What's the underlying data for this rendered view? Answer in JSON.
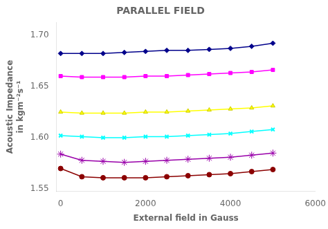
{
  "chart_data": {
    "type": "line",
    "title": "PARALLEL FIELD",
    "xlabel": "External field in Gauss",
    "ylabel": "Acoustic Impedance\nin kgm⁻²s⁻¹",
    "x": [
      0,
      500,
      1000,
      1500,
      2000,
      2500,
      3000,
      3500,
      4000,
      4500,
      5000
    ],
    "series": [
      {
        "color": "#00008B",
        "marker": "diamond",
        "values": [
          1.682,
          1.682,
          1.682,
          1.683,
          1.684,
          1.685,
          1.685,
          1.686,
          1.687,
          1.689,
          1.692
        ]
      },
      {
        "color": "#FF00FF",
        "marker": "square",
        "values": [
          1.66,
          1.659,
          1.659,
          1.659,
          1.66,
          1.66,
          1.661,
          1.662,
          1.663,
          1.664,
          1.666
        ]
      },
      {
        "color": "#FFFF00",
        "marker": "triangle",
        "values": [
          1.625,
          1.624,
          1.624,
          1.624,
          1.625,
          1.625,
          1.626,
          1.627,
          1.628,
          1.629,
          1.631
        ]
      },
      {
        "color": "#00FFFF",
        "marker": "x",
        "values": [
          1.602,
          1.601,
          1.6,
          1.6,
          1.601,
          1.601,
          1.602,
          1.603,
          1.604,
          1.606,
          1.608
        ]
      },
      {
        "color": "#9900AA",
        "marker": "star",
        "values": [
          1.584,
          1.578,
          1.577,
          1.576,
          1.577,
          1.578,
          1.579,
          1.58,
          1.581,
          1.583,
          1.585
        ]
      },
      {
        "color": "#8B0000",
        "marker": "circle",
        "values": [
          1.57,
          1.562,
          1.561,
          1.561,
          1.561,
          1.562,
          1.563,
          1.564,
          1.565,
          1.567,
          1.569
        ]
      }
    ],
    "xlim": [
      -100,
      6000
    ],
    "xticks": [
      0,
      2000,
      4000,
      6000
    ],
    "ylim": [
      1.548,
      1.712
    ],
    "yticks": [
      {
        "value": 1.55,
        "label": "1.55"
      },
      {
        "value": 1.6,
        "label": "1.60"
      },
      {
        "value": 1.65,
        "label": "1.65"
      },
      {
        "value": 1.7,
        "label": "1.70"
      }
    ],
    "grid": false
  }
}
